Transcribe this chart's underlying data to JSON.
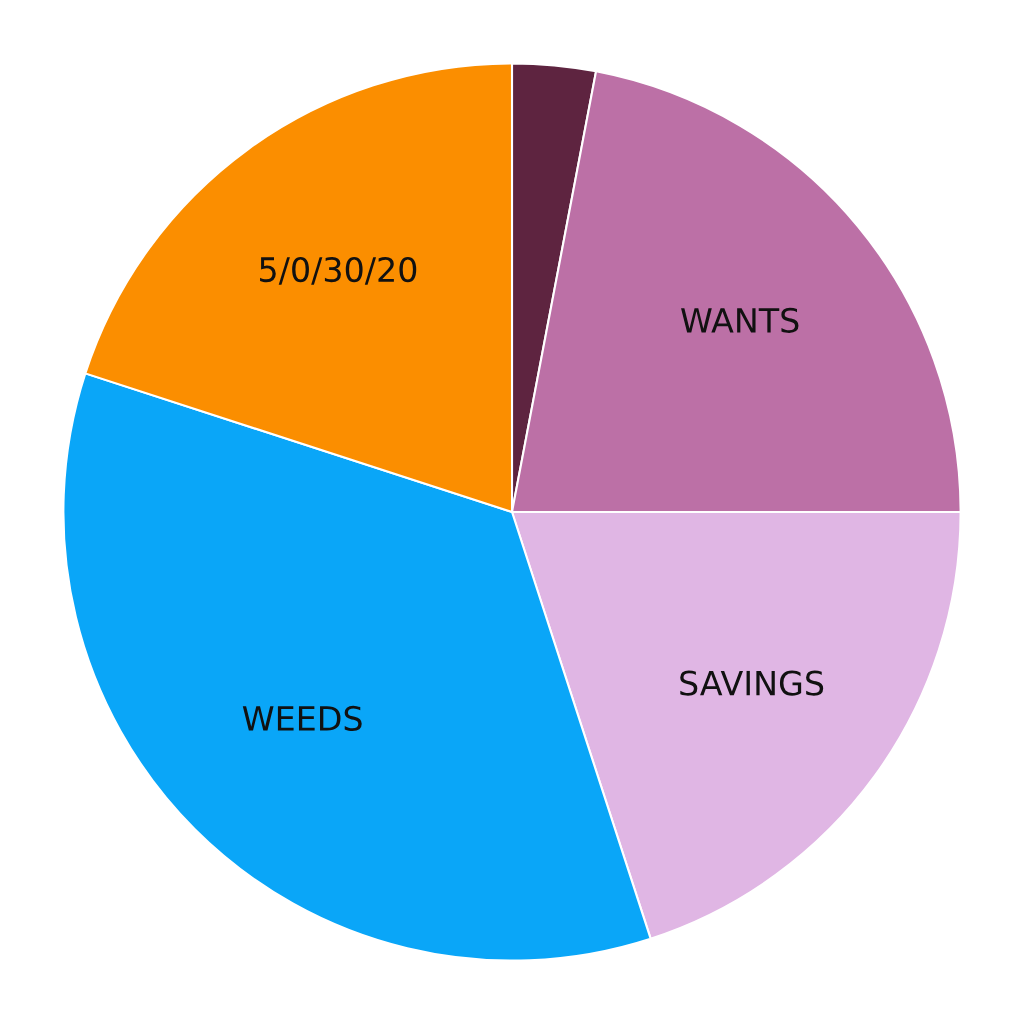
{
  "chart_data": {
    "type": "pie",
    "categories": [
      null,
      "WANTS",
      "SAVINGS",
      "WEEDS",
      "5/0/30/20"
    ],
    "values": [
      3,
      22,
      20,
      35,
      20
    ],
    "colors": [
      "#5e2440",
      "#bc70a6",
      "#e0b6e4",
      "#0aa6f8",
      "#fb8e00"
    ]
  }
}
